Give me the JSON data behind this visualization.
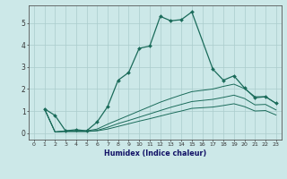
{
  "xlabel": "Humidex (Indice chaleur)",
  "bg_color": "#cce8e8",
  "grid_color": "#aacccc",
  "line_color": "#1a6b5a",
  "xlim": [
    -0.5,
    23.5
  ],
  "ylim": [
    -0.3,
    5.8
  ],
  "xticks": [
    0,
    1,
    2,
    3,
    4,
    5,
    6,
    7,
    8,
    9,
    10,
    11,
    12,
    13,
    14,
    15,
    16,
    17,
    18,
    19,
    20,
    21,
    22,
    23
  ],
  "yticks": [
    0,
    1,
    2,
    3,
    4,
    5
  ],
  "series1_x": [
    1,
    2,
    3,
    4,
    5,
    6,
    7,
    8,
    9,
    10,
    11,
    12,
    13,
    14,
    15,
    17,
    18,
    19,
    20,
    21,
    22,
    23
  ],
  "series1_y": [
    1.1,
    0.8,
    0.1,
    0.15,
    0.1,
    0.5,
    1.2,
    2.4,
    2.75,
    3.85,
    3.95,
    5.3,
    5.1,
    5.15,
    5.5,
    2.9,
    2.4,
    2.6,
    2.05,
    1.6,
    1.65,
    1.35
  ],
  "series2_x": [
    1,
    2,
    3,
    4,
    5,
    6,
    7,
    8,
    9,
    10,
    11,
    12,
    13,
    14,
    15,
    17,
    18,
    19,
    20,
    21,
    22,
    23
  ],
  "series2_y": [
    1.1,
    0.05,
    0.1,
    0.1,
    0.1,
    0.18,
    0.4,
    0.6,
    0.8,
    1.0,
    1.2,
    1.4,
    1.57,
    1.73,
    1.88,
    2.0,
    2.12,
    2.22,
    2.02,
    1.65,
    1.65,
    1.35
  ],
  "series3_x": [
    1,
    2,
    3,
    4,
    5,
    6,
    7,
    8,
    9,
    10,
    11,
    12,
    13,
    14,
    15,
    17,
    18,
    19,
    20,
    21,
    22,
    23
  ],
  "series3_y": [
    1.1,
    0.05,
    0.07,
    0.07,
    0.07,
    0.12,
    0.26,
    0.43,
    0.57,
    0.72,
    0.87,
    1.02,
    1.17,
    1.3,
    1.43,
    1.53,
    1.62,
    1.72,
    1.57,
    1.28,
    1.3,
    1.05
  ],
  "series4_x": [
    1,
    2,
    3,
    4,
    5,
    6,
    7,
    8,
    9,
    10,
    11,
    12,
    13,
    14,
    15,
    17,
    18,
    19,
    20,
    21,
    22,
    23
  ],
  "series4_y": [
    1.1,
    0.05,
    0.07,
    0.07,
    0.07,
    0.1,
    0.18,
    0.3,
    0.42,
    0.54,
    0.65,
    0.77,
    0.89,
    1.0,
    1.12,
    1.18,
    1.25,
    1.33,
    1.2,
    1.0,
    1.02,
    0.82
  ]
}
